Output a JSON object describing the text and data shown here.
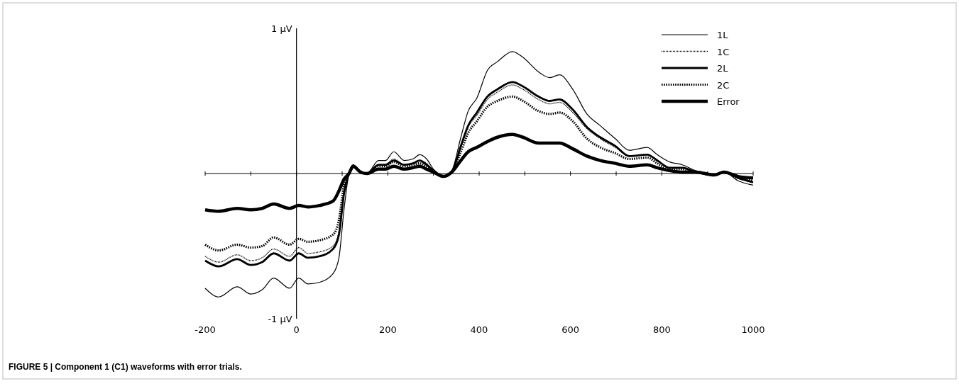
{
  "chart_data": {
    "type": "line",
    "title": "FIGURE 5 | Component 1 (C1) waveforms with error trials.",
    "x": [
      -200,
      -170,
      -130,
      -100,
      -75,
      -50,
      -15,
      5,
      25,
      50,
      80,
      93,
      104,
      115,
      124,
      140,
      154,
      180,
      195,
      213,
      236,
      255,
      270,
      285,
      300,
      322,
      340,
      360,
      376,
      395,
      418,
      440,
      473,
      496,
      530,
      555,
      576,
      605,
      636,
      665,
      698,
      729,
      768,
      790,
      817,
      845,
      874,
      915,
      936,
      967,
      1000
    ],
    "series": [
      {
        "name": "1L",
        "color": "#000000",
        "line_style": "solid",
        "values": [
          -0.79,
          -0.85,
          -0.78,
          -0.83,
          -0.8,
          -0.72,
          -0.79,
          -0.72,
          -0.76,
          -0.75,
          -0.69,
          -0.58,
          -0.25,
          0.0,
          0.06,
          0.02,
          0.0,
          0.09,
          0.09,
          0.15,
          0.09,
          0.1,
          0.13,
          0.1,
          0.03,
          -0.02,
          0.02,
          0.25,
          0.43,
          0.52,
          0.71,
          0.77,
          0.84,
          0.8,
          0.7,
          0.66,
          0.68,
          0.58,
          0.41,
          0.33,
          0.24,
          0.16,
          0.18,
          0.13,
          0.08,
          0.06,
          0.02,
          -0.01,
          0.01,
          -0.05,
          -0.08
        ]
      },
      {
        "name": "1C",
        "color": "#000000",
        "line_style": "dotted",
        "values": [
          -0.57,
          -0.61,
          -0.56,
          -0.6,
          -0.58,
          -0.52,
          -0.57,
          -0.51,
          -0.55,
          -0.54,
          -0.5,
          -0.4,
          -0.12,
          0.0,
          0.05,
          0.01,
          0.0,
          0.06,
          0.06,
          0.1,
          0.06,
          0.07,
          0.09,
          0.07,
          0.02,
          -0.02,
          0.01,
          0.18,
          0.32,
          0.4,
          0.51,
          0.56,
          0.61,
          0.58,
          0.51,
          0.48,
          0.49,
          0.42,
          0.31,
          0.24,
          0.18,
          0.12,
          0.13,
          0.09,
          0.04,
          0.04,
          0.01,
          -0.01,
          0.01,
          -0.03,
          -0.06
        ]
      },
      {
        "name": "2L",
        "color": "#000000",
        "line_style": "solid",
        "values": [
          -0.6,
          -0.64,
          -0.59,
          -0.63,
          -0.61,
          -0.55,
          -0.6,
          -0.55,
          -0.58,
          -0.57,
          -0.52,
          -0.42,
          -0.14,
          0.0,
          0.05,
          0.01,
          0.0,
          0.06,
          0.06,
          0.09,
          0.06,
          0.07,
          0.09,
          0.06,
          0.02,
          -0.02,
          0.01,
          0.19,
          0.33,
          0.42,
          0.53,
          0.58,
          0.63,
          0.6,
          0.53,
          0.5,
          0.51,
          0.44,
          0.32,
          0.25,
          0.19,
          0.12,
          0.13,
          0.09,
          0.04,
          0.04,
          0.01,
          -0.01,
          0.01,
          -0.03,
          -0.06
        ]
      },
      {
        "name": "2C",
        "color": "#000000",
        "line_style": "dotted",
        "values": [
          -0.49,
          -0.53,
          -0.49,
          -0.51,
          -0.5,
          -0.44,
          -0.49,
          -0.45,
          -0.47,
          -0.46,
          -0.42,
          -0.32,
          -0.08,
          0.0,
          0.05,
          0.01,
          0.0,
          0.05,
          0.05,
          0.08,
          0.05,
          0.06,
          0.07,
          0.05,
          0.02,
          -0.02,
          0.01,
          0.15,
          0.28,
          0.36,
          0.46,
          0.5,
          0.53,
          0.5,
          0.43,
          0.41,
          0.42,
          0.36,
          0.24,
          0.18,
          0.14,
          0.1,
          0.11,
          0.07,
          0.03,
          0.03,
          0.01,
          -0.01,
          0.01,
          -0.03,
          -0.05
        ]
      },
      {
        "name": "Error",
        "color": "#000000",
        "line_style": "solid",
        "values": [
          -0.25,
          -0.26,
          -0.24,
          -0.25,
          -0.24,
          -0.21,
          -0.24,
          -0.22,
          -0.23,
          -0.22,
          -0.19,
          -0.12,
          -0.04,
          0.0,
          0.05,
          0.01,
          0.0,
          0.03,
          0.03,
          0.05,
          0.03,
          0.04,
          0.05,
          0.03,
          0.01,
          -0.02,
          0.01,
          0.09,
          0.15,
          0.18,
          0.22,
          0.25,
          0.27,
          0.25,
          0.21,
          0.21,
          0.21,
          0.17,
          0.12,
          0.09,
          0.07,
          0.05,
          0.06,
          0.04,
          0.02,
          0.01,
          0.01,
          -0.01,
          0.01,
          -0.02,
          -0.03
        ]
      }
    ],
    "xlim": [
      -200,
      1000
    ],
    "ylim": [
      -1,
      1
    ],
    "xticks": [
      -200,
      {
        "value": -100,
        "label": null
      },
      0,
      {
        "value": 100,
        "label": null
      },
      200,
      {
        "value": 300,
        "label": null
      },
      400,
      {
        "value": 500,
        "label": null
      },
      600,
      {
        "value": 700,
        "label": null
      },
      800,
      {
        "value": 900,
        "label": null
      },
      1000
    ],
    "yticks": [
      {
        "value": -1,
        "label": "-1 µV"
      },
      {
        "value": 1,
        "label": "1 µV"
      }
    ],
    "legend": "top right",
    "grid": false
  }
}
